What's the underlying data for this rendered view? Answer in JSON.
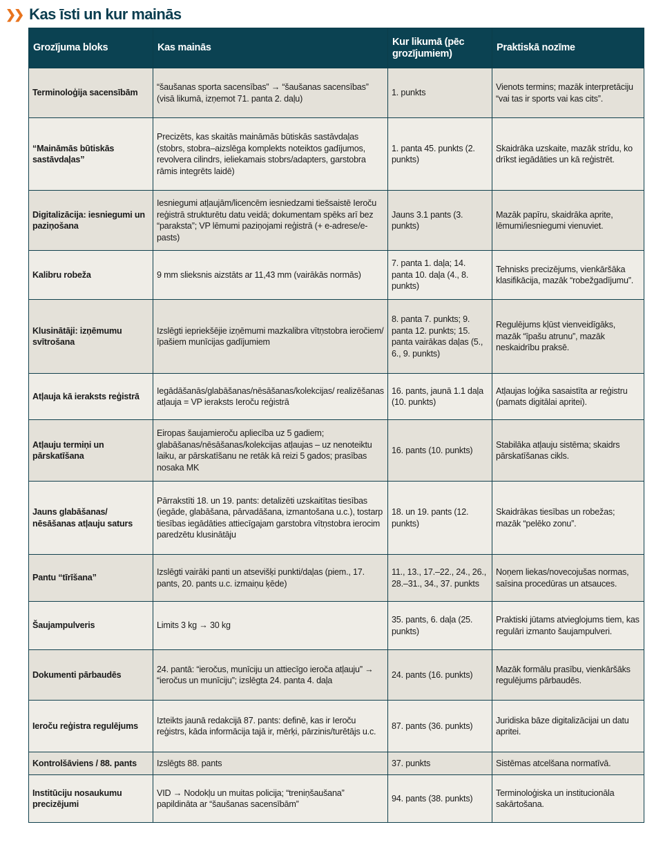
{
  "title": "Kas īsti un kur mainās",
  "headers": [
    "Grozījuma bloks",
    "Kas mainās",
    "Kur likumā (pēc grozījumiem)",
    "Praktiskā nozīme"
  ],
  "rows": [
    [
      "Terminoloģija sacensībām",
      "“šaušanas sporta sacensības” → “šaušanas sacensības” (visā likumā, izņemot 71. panta 2. daļu)",
      "1. punkts",
      "Vienots termins; mazāk interpretāciju “vai tas ir sports vai kas cits”."
    ],
    [
      "“Maināmās būtiskās sastāvdaļas”",
      "Precizēts, kas skaitās maināmās būtiskās sastāvdaļas (stobrs, stobra–aizslēga komplekts noteiktos gadījumos, revolvera cilindrs, ieliekamais stobrs/adapters, garstobra rāmis integrēts laidē)",
      "1. panta 45. punkts (2. punkts)",
      "Skaidrāka uzskaite, mazāk strīdu, ko drīkst iegādāties un kā reģistrēt."
    ],
    [
      "Digitalizācija: iesniegumi un paziņošana",
      "Iesniegumi atļaujām/licencēm iesniedzami tiešsaistē Ieroču reģistrā strukturētu datu veidā; dokumentam spēks arī bez “paraksta”; VP lēmumi paziņojami reģistrā (+ e-adrese/e-pasts)",
      "Jauns 3.1 pants (3. punkts)",
      "Mazāk papīru, skaidrāka aprite, lēmumi/iesniegumi vienuviet."
    ],
    [
      "Kalibru robeža",
      "9 mm slieksnis aizstāts ar 11,43 mm (vairākās normās)",
      "7. panta 1. daļa; 14. panta 10. daļa (4., 8. punkts)",
      "Tehnisks precizējums, vienkāršāka klasifikācija, mazāk “robežgadījumu”."
    ],
    [
      "Klusinātāji: izņēmumu svītrošana",
      "Izslēgti iepriekšējie izņēmumi mazkalibra vītņstobra ieročiem/īpašiem munīcijas gadījumiem",
      "8. panta 7. punkts; 9. panta 12. punkts; 15. panta vairākas daļas (5., 6., 9. punkts)",
      "Regulējums kļūst vienveidīgāks, mazāk “īpašu atrunu”, mazāk neskaidrību praksē."
    ],
    [
      "Atļauja kā ieraksts reģistrā",
      "Iegādāšanās/glabāšanas/nēsāšanas/kolekcijas/ realizēšanas atļauja = VP ieraksts Ieroču reģistrā",
      "16. pants, jaunā 1.1 daļa (10. punkts)",
      "Atļaujas loģika sasaistīta ar reģistru (pamats digitālai apritei)."
    ],
    [
      "Atļauju termiņi un pārskatīšana",
      "Eiropas šaujamieroču apliecība uz 5 gadiem; glabāšanas/nēsāšanas/kolekcijas atļaujas – uz nenoteiktu laiku, ar pārskatīšanu ne retāk kā reizi 5 gados; prasības nosaka MK",
      "16. pants (10. punkts)",
      "Stabilāka atļauju sistēma; skaidrs pārskatīšanas cikls."
    ],
    [
      "Jauns glabāšanas/ nēsāšanas atļauju saturs",
      "Pārrakstīti 18. un 19. pants: detalizēti uzskaitītas tiesības (iegāde, glabāšana, pārvadāšana, izmantošana u.c.), tostarp tiesības iegādāties attiecīgajam garstobra vītņstobra ierocim paredzētu klusinātāju",
      "18. un 19. pants (12. punkts)",
      "Skaidrākas tiesības un robežas; mazāk “pelēko zonu”."
    ],
    [
      "Pantu “tīrīšana”",
      "Izslēgti vairāki panti un atsevišķi punkti/daļas (piem., 17. pants, 20. pants u.c. izmaiņu ķēde)",
      "11., 13., 17.–22., 24., 26., 28.–31., 34., 37. punkts",
      "Noņem liekas/novecojušas normas, saīsina procedūras un atsauces."
    ],
    [
      "Šaujampulveris",
      "Limits 3 kg → 30 kg",
      "35. pants, 6. daļa (25. punkts)",
      "Praktiski jūtams atvieglojums tiem, kas regulāri izmanto šaujampulveri."
    ],
    [
      "Dokumenti pārbaudēs",
      "24. pantā: “ieročus, munīciju un attiecīgo ieroča atļauju” → “ieročus un munīciju”; izslēgta 24. panta 4. daļa",
      "24. pants (16. punkts)",
      "Mazāk formālu prasību, vienkāršāks regulējums pārbaudēs."
    ],
    [
      "Ieroču reģistra regulējums",
      "Izteikts jaunā redakcijā 87. pants: definē, kas ir Ieroču reģistrs, kāda informācija tajā ir, mērķi, pārzinis/turētājs u.c.",
      "87. pants (36. punkts)",
      "Juridiska bāze digitalizācijai un datu apritei."
    ],
    [
      "Kontrolšāviens / 88. pants",
      "Izslēgts 88. pants",
      "37. punkts",
      "Sistēmas atcelšana normatīvā."
    ],
    [
      "Institūciju nosaukumu precizējumi",
      "VID → Nodokļu un muitas policija; “treniņšaušana” papildināta ar “šaušanas sacensībām”",
      "94. pants (38. punkts)",
      "Terminoloģiska un institucionāla sakārtošana."
    ]
  ],
  "colors": {
    "header_bg": "#0b4252",
    "title": "#0b3d4f",
    "accent": "#e8741e"
  }
}
